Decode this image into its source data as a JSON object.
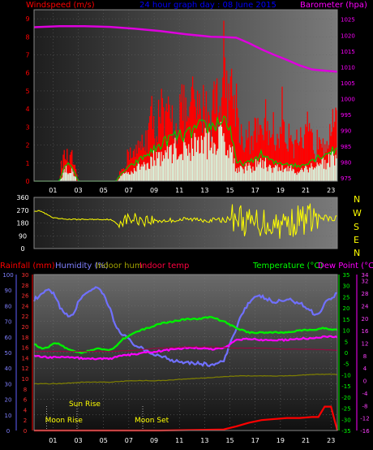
{
  "panel1": {
    "title_left": "Windspeed (m/s)",
    "title_center": "24 hour graph day : 08 June 2015",
    "title_right": "Barometer (hpa)"
  },
  "panel2": {
    "direction_labels": [
      "N",
      "W",
      "S",
      "E",
      "N"
    ]
  },
  "panel3": {
    "labels": {
      "rain": "Rainfall (mm)",
      "humidity": "Humidity (%)",
      "indoor_hum": "Indoor hum",
      "indoor_temp": "Indoor temp",
      "temperature": "Temperature (°C)",
      "dewpoint": "Dew Point (°C)"
    },
    "events": [
      {
        "label": "Moon Rise",
        "hour": 1.0
      },
      {
        "label": "Sun Rise",
        "hour": 3.4
      },
      {
        "label": "Moon Set",
        "hour": 8.6
      }
    ]
  },
  "colors": {
    "wind": "#ff0000",
    "gust_avg": "#00cc00",
    "wind_low": "#d8f0d8",
    "barometer": "#dd00dd",
    "direction": "#ffff00",
    "rain": "#ff0000",
    "humidity": "#7070ff",
    "indoor_hum": "#808000",
    "indoor_temp": "#a00040",
    "temperature": "#00ee00",
    "dewpoint": "#ff00ff",
    "axis_green": "#00ff00",
    "axis_pink": "#ff00ff"
  },
  "chart_data": [
    {
      "type": "area",
      "name": "wind_and_barometer",
      "x_ticks": [
        "01",
        "03",
        "05",
        "07",
        "09",
        "11",
        "13",
        "15",
        "17",
        "19",
        "21",
        "23"
      ],
      "y_left": {
        "label": "Windspeed (m/s)",
        "ticks": [
          "0",
          "1",
          "2",
          "3",
          "4",
          "5",
          "6",
          "7",
          "8",
          "9"
        ],
        "range": [
          0,
          9.5
        ]
      },
      "y_right": {
        "label": "Barometer (hpa)",
        "ticks": [
          "975",
          "980",
          "985",
          "990",
          "995",
          "1000",
          "1005",
          "1010",
          "1015",
          "1020",
          "1025"
        ],
        "range": [
          974,
          1028
        ]
      },
      "series": [
        {
          "name": "Windspeed",
          "kind": "bars",
          "x": [
            0,
            1,
            2,
            2.2,
            2.5,
            2.8,
            3,
            3.5,
            4,
            5,
            6,
            6.5,
            7,
            7.3,
            7.6,
            8,
            8.3,
            8.6,
            9,
            9.3,
            9.6,
            10,
            10.3,
            10.6,
            11,
            11.3,
            11.6,
            12,
            12.3,
            12.6,
            13,
            13.3,
            13.6,
            14,
            14.3,
            14.6,
            15,
            15.2,
            15.4,
            15.7,
            16,
            16.5,
            17,
            17.3,
            17.6,
            18,
            18.3,
            18.6,
            19,
            19.3,
            19.6,
            20,
            20.3,
            20.6,
            21,
            21.3,
            21.6,
            22,
            22.3,
            22.6,
            23,
            23.5,
            24
          ],
          "values": [
            0,
            0,
            0,
            1.5,
            2,
            1.5,
            1.8,
            0,
            0,
            0,
            0,
            0,
            1,
            1.5,
            2.5,
            2,
            2.5,
            3,
            3.5,
            5,
            3.5,
            6,
            4,
            5,
            4.5,
            4,
            6,
            5,
            4.5,
            6.5,
            5,
            5.5,
            6,
            4.5,
            7,
            5.5,
            9.2,
            8,
            6.5,
            7,
            6,
            3,
            3.5,
            2.5,
            4.5,
            3,
            5,
            3.5,
            4,
            2.5,
            5.5,
            3,
            4.5,
            2.5,
            3.5,
            2,
            4,
            3,
            2,
            4.5,
            3,
            4.5,
            4
          ]
        },
        {
          "name": "Average speed",
          "kind": "line",
          "x": [
            0,
            2,
            2.5,
            3,
            3.5,
            6.5,
            7,
            8,
            9,
            10,
            11,
            12,
            13,
            14,
            15,
            15.5,
            16,
            17,
            18,
            19,
            20,
            21,
            22,
            23,
            24
          ],
          "values": [
            0,
            0,
            1,
            0.8,
            0,
            0,
            0.5,
            1,
            1.5,
            2,
            2.5,
            2.5,
            3,
            3,
            3.5,
            3,
            1,
            1,
            1.5,
            1,
            1,
            0.8,
            1.2,
            1.5,
            1.8
          ]
        },
        {
          "name": "Barometer",
          "kind": "line",
          "x": [
            0,
            2,
            4,
            6,
            8,
            10,
            12,
            14,
            15,
            16,
            17,
            18,
            19,
            20,
            21,
            22,
            23,
            24
          ],
          "values": [
            1022.5,
            1022.8,
            1022.8,
            1022.6,
            1022,
            1021.3,
            1020.3,
            1019.5,
            1019.4,
            1019.2,
            1017.5,
            1015.5,
            1013.8,
            1012.2,
            1010.5,
            1009.2,
            1008.8,
            1008.5
          ]
        }
      ]
    },
    {
      "type": "scatter",
      "name": "wind_direction",
      "x_ticks": [],
      "y": {
        "ticks": [
          "0",
          "90",
          "180",
          "270",
          "360"
        ],
        "range": [
          0,
          360
        ]
      },
      "series": [
        {
          "name": "Wind direction",
          "x": [
            0,
            0.5,
            1,
            1.5,
            2,
            3,
            4,
            5,
            6,
            6.5,
            7,
            8,
            9,
            10,
            11,
            12,
            13,
            14,
            15,
            15.5,
            16,
            17,
            18,
            19,
            20,
            21,
            22,
            23,
            24
          ],
          "values": [
            265,
            265,
            240,
            215,
            210,
            205,
            205,
            205,
            205,
            180,
            200,
            210,
            200,
            195,
            200,
            205,
            205,
            200,
            200,
            210,
            230,
            170,
            190,
            175,
            180,
            200,
            220,
            210,
            205
          ]
        }
      ]
    },
    {
      "type": "line",
      "name": "temperature_humidity_rain",
      "x_ticks": [
        "01",
        "03",
        "05",
        "07",
        "09",
        "11",
        "13",
        "15",
        "17",
        "19",
        "21",
        "23"
      ],
      "y_humidity": {
        "label": "Humidity (%)",
        "ticks": [
          "0",
          "10",
          "20",
          "30",
          "40",
          "50",
          "60",
          "70",
          "80",
          "90",
          "100"
        ],
        "range": [
          0,
          100
        ]
      },
      "y_rain": {
        "label": "Rainfall (mm)",
        "ticks": [
          "0",
          "2",
          "4",
          "6",
          "8",
          "10",
          "12",
          "14",
          "16",
          "18",
          "20",
          "22",
          "24",
          "26",
          "28",
          "30"
        ],
        "range": [
          0,
          30
        ]
      },
      "y_temp": {
        "label": "Temperature (°C)",
        "ticks": [
          "-35",
          "-30",
          "-25",
          "-20",
          "-15",
          "-10",
          "-5",
          "0",
          "5",
          "10",
          "15",
          "20",
          "25",
          "30",
          "35"
        ],
        "range": [
          -35,
          35
        ]
      },
      "y_dew": {
        "label": "Dew Point (°C)",
        "ticks": [
          "-16",
          "-12",
          "-8",
          "-4",
          "0",
          "4",
          "8",
          "12",
          "16",
          "20",
          "24",
          "28",
          "32",
          "34"
        ],
        "range": [
          -16,
          34
        ]
      },
      "series": [
        {
          "name": "Humidity",
          "axis": "humidity",
          "x": [
            0,
            0.5,
            1,
            1.5,
            2,
            2.5,
            3,
            3.5,
            4,
            4.5,
            5,
            5.5,
            6,
            6.5,
            7,
            7.5,
            8,
            9,
            10,
            11,
            12,
            13,
            14,
            15,
            15.5,
            16,
            16.5,
            17,
            17.5,
            18,
            19,
            20,
            21,
            22,
            22.5,
            23,
            24
          ],
          "values": [
            84,
            86,
            90,
            88,
            80,
            74,
            73,
            82,
            88,
            90,
            91,
            87,
            78,
            66,
            62,
            58,
            55,
            50,
            48,
            45,
            44,
            43,
            42,
            44,
            55,
            66,
            76,
            82,
            85,
            86,
            82,
            84,
            82,
            76,
            74,
            82,
            88
          ]
        },
        {
          "name": "Temperature",
          "axis": "temp",
          "x": [
            0,
            0.5,
            1,
            1.5,
            2,
            2.5,
            3,
            3.5,
            4,
            4.5,
            5,
            6,
            6.5,
            7,
            8,
            9,
            10,
            11,
            12,
            13,
            14,
            15,
            16,
            17,
            18,
            19,
            20,
            21,
            22,
            23,
            24
          ],
          "values": [
            4,
            2,
            2,
            4,
            4,
            2,
            1,
            0,
            0,
            1,
            2,
            1,
            3,
            6,
            9,
            11,
            13,
            14,
            15,
            15,
            16,
            14,
            11,
            9,
            9,
            9,
            9,
            10,
            10,
            11,
            10
          ]
        },
        {
          "name": "Dew Point",
          "axis": "dew",
          "x": [
            0,
            1,
            2,
            3,
            4,
            5,
            6,
            7,
            8,
            9,
            10,
            11,
            12,
            13,
            14,
            15,
            16,
            17,
            18,
            19,
            20,
            21,
            22,
            23,
            24
          ],
          "values": [
            8,
            7.5,
            7.5,
            7.5,
            7,
            7,
            7,
            8,
            8.5,
            9,
            9.5,
            10,
            10.5,
            10.5,
            10,
            10.5,
            13,
            13.5,
            13,
            13,
            13,
            13.5,
            13.5,
            14,
            14
          ]
        },
        {
          "name": "Indoor temp",
          "axis": "temp",
          "x": [
            0,
            2,
            4,
            6,
            8,
            10,
            12,
            14,
            16,
            18,
            20,
            22,
            24
          ],
          "values": [
            0.5,
            0.5,
            0.5,
            0.5,
            1,
            2,
            2.5,
            2.5,
            2,
            2,
            1.5,
            1.5,
            1
          ]
        },
        {
          "name": "Indoor hum",
          "axis": "humidity",
          "x": [
            0,
            2,
            4,
            6,
            8,
            10,
            12,
            14,
            16,
            18,
            20,
            22,
            24
          ],
          "values": [
            30,
            30,
            31,
            31,
            32,
            32,
            33,
            34,
            35,
            35,
            35,
            36,
            36
          ]
        },
        {
          "name": "Rainfall",
          "axis": "rain",
          "x": [
            0,
            10,
            15,
            16,
            17,
            18,
            20,
            21,
            22,
            22.5,
            23,
            23.5,
            24
          ],
          "values": [
            0,
            0,
            0.2,
            0.8,
            1.5,
            2,
            2.4,
            2.4,
            2.6,
            2.6,
            4.6,
            4.6,
            0
          ]
        }
      ]
    }
  ]
}
